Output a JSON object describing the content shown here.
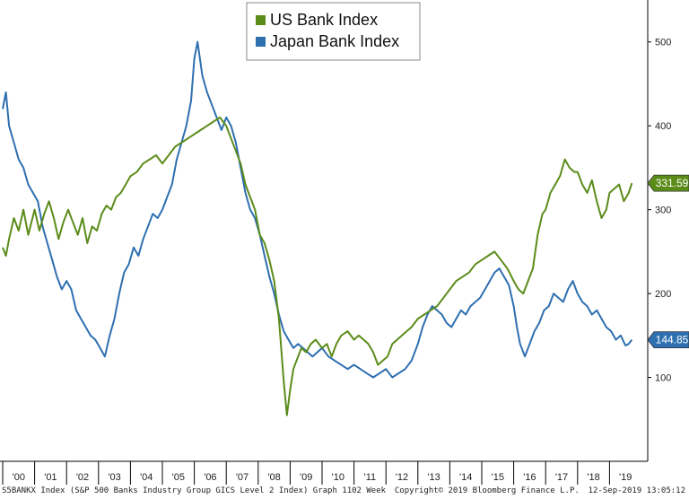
{
  "chart_data": {
    "type": "line",
    "legend_placement": "top-center",
    "grid": false,
    "x_ticks": [
      "'00",
      "'01",
      "'02",
      "'03",
      "'04",
      "'05",
      "'06",
      "'07",
      "'08",
      "'09",
      "'10",
      "'11",
      "'12",
      "'13",
      "'14",
      "'15",
      "'16",
      "'17",
      "'18",
      "'19"
    ],
    "y_ticks": [
      100,
      200,
      300,
      400,
      500
    ],
    "ylim": [
      0,
      550
    ],
    "xlim": [
      2000.0,
      2020.0
    ],
    "y_axis_side": "right",
    "colors": {
      "us": "#5b8c1a",
      "japan": "#2e6fb0"
    },
    "series": [
      {
        "name": "US Bank Index",
        "last_value_label": "331.59",
        "last_value": 331.59,
        "x": [
          2000.0,
          2000.1,
          2000.2,
          2000.35,
          2000.5,
          2000.65,
          2000.8,
          2000.9,
          2001.0,
          2001.15,
          2001.3,
          2001.45,
          2001.6,
          2001.75,
          2001.9,
          2002.05,
          2002.2,
          2002.35,
          2002.5,
          2002.65,
          2002.8,
          2002.95,
          2003.1,
          2003.25,
          2003.4,
          2003.55,
          2003.7,
          2003.85,
          2004.0,
          2004.2,
          2004.4,
          2004.6,
          2004.8,
          2005.0,
          2005.2,
          2005.4,
          2005.6,
          2005.8,
          2006.0,
          2006.2,
          2006.4,
          2006.6,
          2006.8,
          2007.0,
          2007.15,
          2007.3,
          2007.45,
          2007.6,
          2007.75,
          2007.9,
          2008.05,
          2008.2,
          2008.35,
          2008.5,
          2008.65,
          2008.8,
          2008.9,
          2009.0,
          2009.1,
          2009.2,
          2009.35,
          2009.5,
          2009.65,
          2009.8,
          2010.0,
          2010.15,
          2010.3,
          2010.45,
          2010.6,
          2010.8,
          2011.0,
          2011.15,
          2011.3,
          2011.45,
          2011.6,
          2011.75,
          2011.9,
          2012.05,
          2012.2,
          2012.35,
          2012.5,
          2012.65,
          2012.8,
          2013.0,
          2013.2,
          2013.4,
          2013.6,
          2013.8,
          2014.0,
          2014.2,
          2014.4,
          2014.6,
          2014.8,
          2015.0,
          2015.2,
          2015.4,
          2015.6,
          2015.8,
          2016.0,
          2016.15,
          2016.3,
          2016.45,
          2016.6,
          2016.75,
          2016.9,
          2017.0,
          2017.15,
          2017.3,
          2017.45,
          2017.6,
          2017.75,
          2017.9,
          2018.0,
          2018.15,
          2018.3,
          2018.45,
          2018.6,
          2018.75,
          2018.9,
          2019.0,
          2019.15,
          2019.3,
          2019.45,
          2019.6,
          2019.7
        ],
        "values": [
          255,
          245,
          265,
          290,
          275,
          300,
          270,
          285,
          300,
          275,
          295,
          310,
          290,
          265,
          285,
          300,
          285,
          270,
          290,
          260,
          280,
          275,
          295,
          305,
          300,
          315,
          320,
          330,
          340,
          345,
          355,
          360,
          365,
          355,
          365,
          375,
          380,
          385,
          390,
          395,
          400,
          405,
          410,
          400,
          385,
          370,
          355,
          330,
          315,
          300,
          270,
          260,
          240,
          215,
          170,
          95,
          55,
          85,
          110,
          120,
          135,
          130,
          140,
          145,
          135,
          140,
          125,
          140,
          150,
          155,
          145,
          150,
          145,
          140,
          130,
          115,
          120,
          125,
          140,
          145,
          150,
          155,
          160,
          170,
          175,
          180,
          185,
          195,
          205,
          215,
          220,
          225,
          235,
          240,
          245,
          250,
          240,
          230,
          215,
          205,
          200,
          215,
          230,
          270,
          295,
          300,
          320,
          330,
          340,
          360,
          350,
          345,
          345,
          330,
          320,
          335,
          310,
          290,
          300,
          320,
          325,
          330,
          310,
          320,
          331.59
        ]
      },
      {
        "name": "Japan Bank Index",
        "last_value_label": "144.85",
        "last_value": 144.85,
        "x": [
          2000.0,
          2000.1,
          2000.2,
          2000.35,
          2000.5,
          2000.65,
          2000.8,
          2000.95,
          2001.1,
          2001.25,
          2001.4,
          2001.55,
          2001.7,
          2001.85,
          2002.0,
          2002.15,
          2002.3,
          2002.45,
          2002.6,
          2002.75,
          2002.9,
          2003.05,
          2003.2,
          2003.35,
          2003.5,
          2003.65,
          2003.8,
          2003.95,
          2004.1,
          2004.25,
          2004.4,
          2004.55,
          2004.7,
          2004.85,
          2005.0,
          2005.15,
          2005.3,
          2005.45,
          2005.6,
          2005.75,
          2005.9,
          2006.0,
          2006.1,
          2006.25,
          2006.4,
          2006.55,
          2006.7,
          2006.85,
          2007.0,
          2007.15,
          2007.3,
          2007.45,
          2007.6,
          2007.75,
          2007.9,
          2008.05,
          2008.2,
          2008.35,
          2008.5,
          2008.65,
          2008.8,
          2008.95,
          2009.1,
          2009.25,
          2009.4,
          2009.55,
          2009.7,
          2009.85,
          2010.0,
          2010.2,
          2010.4,
          2010.6,
          2010.8,
          2011.0,
          2011.2,
          2011.4,
          2011.6,
          2011.8,
          2012.0,
          2012.2,
          2012.4,
          2012.6,
          2012.8,
          2013.0,
          2013.15,
          2013.3,
          2013.45,
          2013.6,
          2013.75,
          2013.9,
          2014.05,
          2014.2,
          2014.35,
          2014.5,
          2014.65,
          2014.8,
          2014.95,
          2015.1,
          2015.25,
          2015.4,
          2015.55,
          2015.7,
          2015.85,
          2016.0,
          2016.1,
          2016.2,
          2016.35,
          2016.5,
          2016.65,
          2016.8,
          2016.95,
          2017.1,
          2017.25,
          2017.4,
          2017.55,
          2017.7,
          2017.85,
          2018.0,
          2018.15,
          2018.3,
          2018.45,
          2018.6,
          2018.75,
          2018.9,
          2019.05,
          2019.2,
          2019.35,
          2019.5,
          2019.6,
          2019.7
        ],
        "values": [
          420,
          440,
          400,
          380,
          360,
          350,
          330,
          320,
          310,
          280,
          260,
          240,
          220,
          205,
          215,
          205,
          180,
          170,
          160,
          150,
          145,
          135,
          125,
          150,
          170,
          200,
          225,
          235,
          255,
          245,
          265,
          280,
          295,
          290,
          300,
          315,
          330,
          360,
          380,
          400,
          430,
          480,
          500,
          460,
          440,
          425,
          410,
          395,
          410,
          400,
          380,
          350,
          320,
          300,
          290,
          270,
          245,
          220,
          200,
          175,
          155,
          145,
          135,
          140,
          135,
          130,
          125,
          130,
          135,
          125,
          120,
          115,
          110,
          115,
          110,
          105,
          100,
          105,
          110,
          100,
          105,
          110,
          120,
          140,
          160,
          175,
          185,
          180,
          175,
          165,
          160,
          170,
          180,
          175,
          185,
          190,
          195,
          205,
          215,
          225,
          230,
          220,
          210,
          185,
          160,
          140,
          125,
          140,
          155,
          165,
          180,
          185,
          200,
          195,
          190,
          205,
          215,
          200,
          190,
          185,
          175,
          180,
          170,
          160,
          155,
          145,
          150,
          138,
          140,
          144.85
        ]
      }
    ]
  },
  "footer": {
    "left": "S5BANKX Index (S&P 500 Banks Industry Group GICS Level 2 Index) Graph 1102  Week",
    "copyright": "Copyright© 2019 Bloomberg Finance L.P.",
    "timestamp": "12-Sep-2019 13:05:12"
  }
}
